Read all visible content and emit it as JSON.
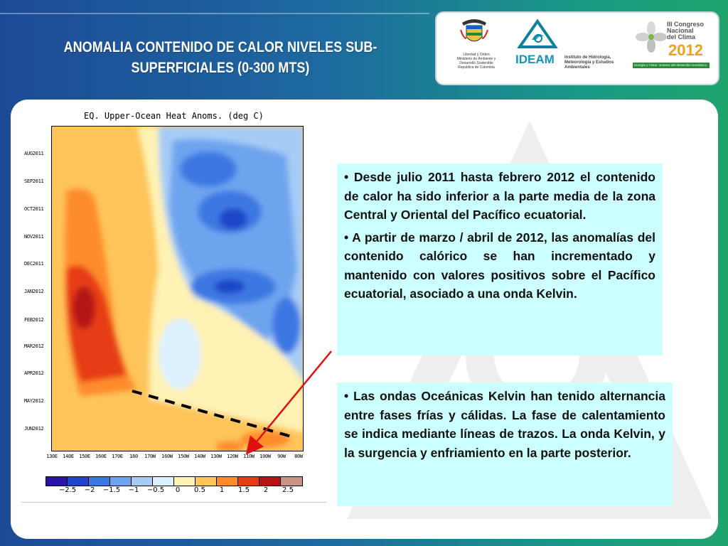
{
  "slide": {
    "title": "ANOMALIA CONTENIDO DE CALOR NIVELES SUB-SUPERFICIALES (0-300 MTS)"
  },
  "logos": {
    "ministerio": "Libertad y Orden\nMinisterio de Ambiente y Desarrollo Sostenible\nRepública de Colombia",
    "ideam_name": "IDEAM",
    "ideam_full": "Instituto de Hidrología, Meteorología y Estudios Ambientales",
    "congreso_line1": "III Congreso Nacional del Clima",
    "congreso_year": "2012",
    "congreso_tagline": "Energía y Clima: motores del desarrollo económico"
  },
  "figure": {
    "title": "EQ. Upper-Ocean Heat Anoms. (deg C)",
    "y_ticks": [
      "AUG2011",
      "SEP2011",
      "OCT2011",
      "NOV2011",
      "DEC2011",
      "JAN2012",
      "FEB2012",
      "MAR2012",
      "APR2012",
      "MAY2012",
      "JUN2012"
    ],
    "x_ticks": [
      "130E",
      "140E",
      "150E",
      "160E",
      "170E",
      "180",
      "170W",
      "160W",
      "150W",
      "140W",
      "130W",
      "120W",
      "110W",
      "100W",
      "90W",
      "80W"
    ],
    "colorbar_labels": [
      "−2.5",
      "−2",
      "−1.5",
      "−1",
      "−0.5",
      "0",
      "0.5",
      "1",
      "1.5",
      "2",
      "2.5"
    ],
    "colorbar_colors": [
      "#2a14a8",
      "#1f46c8",
      "#3c78e2",
      "#6ea4ee",
      "#a6ccf6",
      "#dcf0fe",
      "#fff2b4",
      "#ffc45a",
      "#ff8c2c",
      "#e63c14",
      "#b41414",
      "#c89284"
    ]
  },
  "textboxes": {
    "box1_p1": "• Desde julio 2011 hasta febrero 2012 el contenido de calor ha sido inferior a la parte media de la zona Central y Oriental del Pacífico ecuatorial.",
    "box1_p2": "• A partir de marzo / abril de 2012, las anomalías del contenido calórico se han incrementado y mantenido con valores positivos sobre el Pacífico ecuatorial, asociado a una onda Kelvin.",
    "box2_p1": "• Las ondas Oceánicas Kelvin han tenido alternancia entre fases frías y cálidas. La fase de calentamiento se indica mediante líneas de trazos. La onda Kelvin, y la surgencia y enfriamiento en la parte posterior."
  }
}
